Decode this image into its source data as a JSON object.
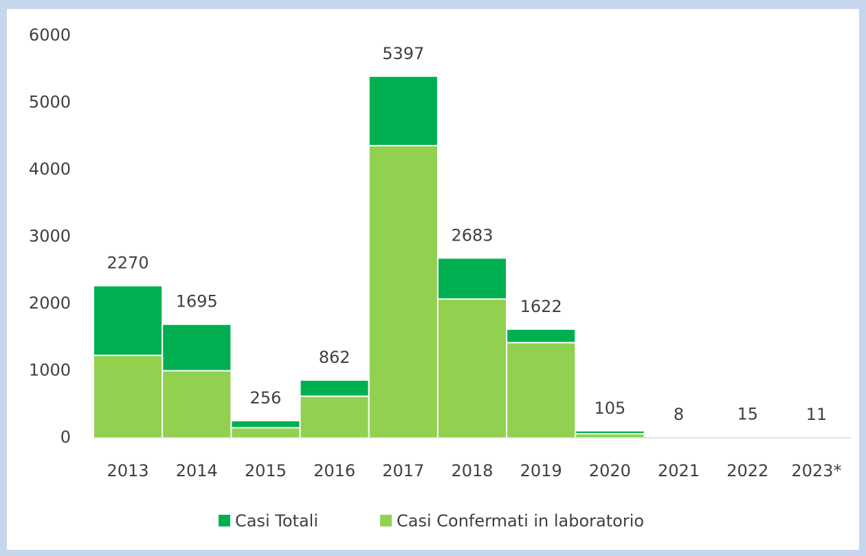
{
  "chart_data": {
    "type": "bar",
    "categories": [
      "2013",
      "2014",
      "2015",
      "2016",
      "2017",
      "2018",
      "2019",
      "2020",
      "2021",
      "2022",
      "2023*"
    ],
    "series": [
      {
        "name": "Casi Totali",
        "color": "#00b050",
        "values": [
          2270,
          1695,
          256,
          862,
          5397,
          2683,
          1622,
          105,
          8,
          15,
          11
        ]
      },
      {
        "name": "Casi Confermati in laboratorio",
        "color": "#92d050",
        "values": [
          1230,
          1000,
          150,
          620,
          4360,
          2070,
          1420,
          60,
          0,
          0,
          0
        ]
      }
    ],
    "ylim": [
      0,
      6000
    ],
    "yticks": [
      0,
      1000,
      2000,
      3000,
      4000,
      5000,
      6000
    ],
    "grid": false,
    "legend": "bottom"
  }
}
